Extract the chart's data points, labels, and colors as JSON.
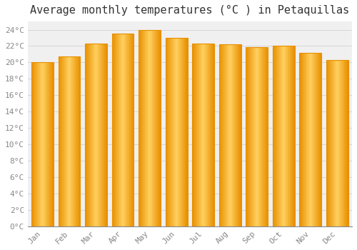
{
  "title": "Average monthly temperatures (°C ) in Petaquillas",
  "months": [
    "Jan",
    "Feb",
    "Mar",
    "Apr",
    "May",
    "Jun",
    "Jul",
    "Aug",
    "Sep",
    "Oct",
    "Nov",
    "Dec"
  ],
  "values": [
    20.0,
    20.7,
    22.3,
    23.5,
    24.0,
    23.0,
    22.3,
    22.2,
    21.9,
    22.0,
    21.2,
    20.3
  ],
  "bar_color_center": "#FFD060",
  "bar_color_edge": "#E89000",
  "background_color": "#FFFFFF",
  "plot_bg_color": "#F0F0F0",
  "ylim": [
    0,
    25
  ],
  "ytick_step": 2,
  "title_fontsize": 11,
  "tick_fontsize": 8,
  "tick_color": "#888888",
  "grid_color": "#CCCCCC",
  "bar_width": 0.82
}
